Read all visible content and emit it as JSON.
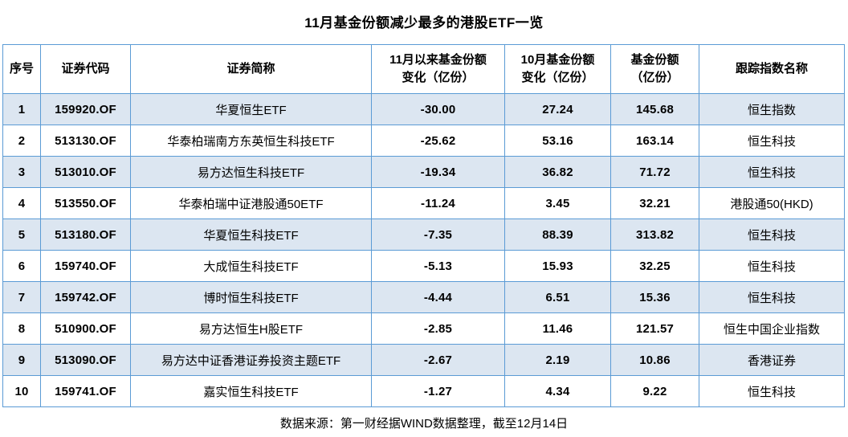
{
  "title": "11月基金份额减少最多的港股ETF一览",
  "source_note": "数据来源：第一财经据WIND数据整理，截至12月14日",
  "colors": {
    "row_stripe": "#DCE6F1",
    "grid_border": "#5B9BD5",
    "text": "#000000",
    "background": "#ffffff"
  },
  "table": {
    "headers": [
      "序号",
      "证券代码",
      "证券简称",
      "11月以来基金份额\n变化（亿份）",
      "10月基金份额\n变化（亿份）",
      "基金份额\n（亿份）",
      "跟踪指数名称"
    ],
    "rows": [
      [
        "1",
        "159920.OF",
        "华夏恒生ETF",
        "-30.00",
        "27.24",
        "145.68",
        "恒生指数"
      ],
      [
        "2",
        "513130.OF",
        "华泰柏瑞南方东英恒生科技ETF",
        "-25.62",
        "53.16",
        "163.14",
        "恒生科技"
      ],
      [
        "3",
        "513010.OF",
        "易方达恒生科技ETF",
        "-19.34",
        "36.82",
        "71.72",
        "恒生科技"
      ],
      [
        "4",
        "513550.OF",
        "华泰柏瑞中证港股通50ETF",
        "-11.24",
        "3.45",
        "32.21",
        "港股通50(HKD)"
      ],
      [
        "5",
        "513180.OF",
        "华夏恒生科技ETF",
        "-7.35",
        "88.39",
        "313.82",
        "恒生科技"
      ],
      [
        "6",
        "159740.OF",
        "大成恒生科技ETF",
        "-5.13",
        "15.93",
        "32.25",
        "恒生科技"
      ],
      [
        "7",
        "159742.OF",
        "博时恒生科技ETF",
        "-4.44",
        "6.51",
        "15.36",
        "恒生科技"
      ],
      [
        "8",
        "510900.OF",
        "易方达恒生H股ETF",
        "-2.85",
        "11.46",
        "121.57",
        "恒生中国企业指数"
      ],
      [
        "9",
        "513090.OF",
        "易方达中证香港证券投资主题ETF",
        "-2.67",
        "2.19",
        "10.86",
        "香港证券"
      ],
      [
        "10",
        "159741.OF",
        "嘉实恒生科技ETF",
        "-1.27",
        "4.34",
        "9.22",
        "恒生科技"
      ]
    ]
  },
  "chart_data": {
    "type": "table",
    "title": "11月基金份额减少最多的港股ETF一览",
    "columns": [
      "序号",
      "证券代码",
      "证券简称",
      "11月以来基金份额变化（亿份）",
      "10月基金份额变化（亿份）",
      "基金份额（亿份）",
      "跟踪指数名称"
    ],
    "rows": [
      [
        1,
        "159920.OF",
        "华夏恒生ETF",
        -30.0,
        27.24,
        145.68,
        "恒生指数"
      ],
      [
        2,
        "513130.OF",
        "华泰柏瑞南方东英恒生科技ETF",
        -25.62,
        53.16,
        163.14,
        "恒生科技"
      ],
      [
        3,
        "513010.OF",
        "易方达恒生科技ETF",
        -19.34,
        36.82,
        71.72,
        "恒生科技"
      ],
      [
        4,
        "513550.OF",
        "华泰柏瑞中证港股通50ETF",
        -11.24,
        3.45,
        32.21,
        "港股通50(HKD)"
      ],
      [
        5,
        "513180.OF",
        "华夏恒生科技ETF",
        -7.35,
        88.39,
        313.82,
        "恒生科技"
      ],
      [
        6,
        "159740.OF",
        "大成恒生科技ETF",
        -5.13,
        15.93,
        32.25,
        "恒生科技"
      ],
      [
        7,
        "159742.OF",
        "博时恒生科技ETF",
        -4.44,
        6.51,
        15.36,
        "恒生科技"
      ],
      [
        8,
        "510900.OF",
        "易方达恒生H股ETF",
        -2.85,
        11.46,
        121.57,
        "恒生中国企业指数"
      ],
      [
        9,
        "513090.OF",
        "易方达中证香港证券投资主题ETF",
        -2.67,
        2.19,
        10.86,
        "香港证券"
      ],
      [
        10,
        "159741.OF",
        "嘉实恒生科技ETF",
        -1.27,
        4.34,
        9.22,
        "恒生科技"
      ]
    ],
    "footnote": "数据来源：第一财经据WIND数据整理，截至12月14日"
  }
}
